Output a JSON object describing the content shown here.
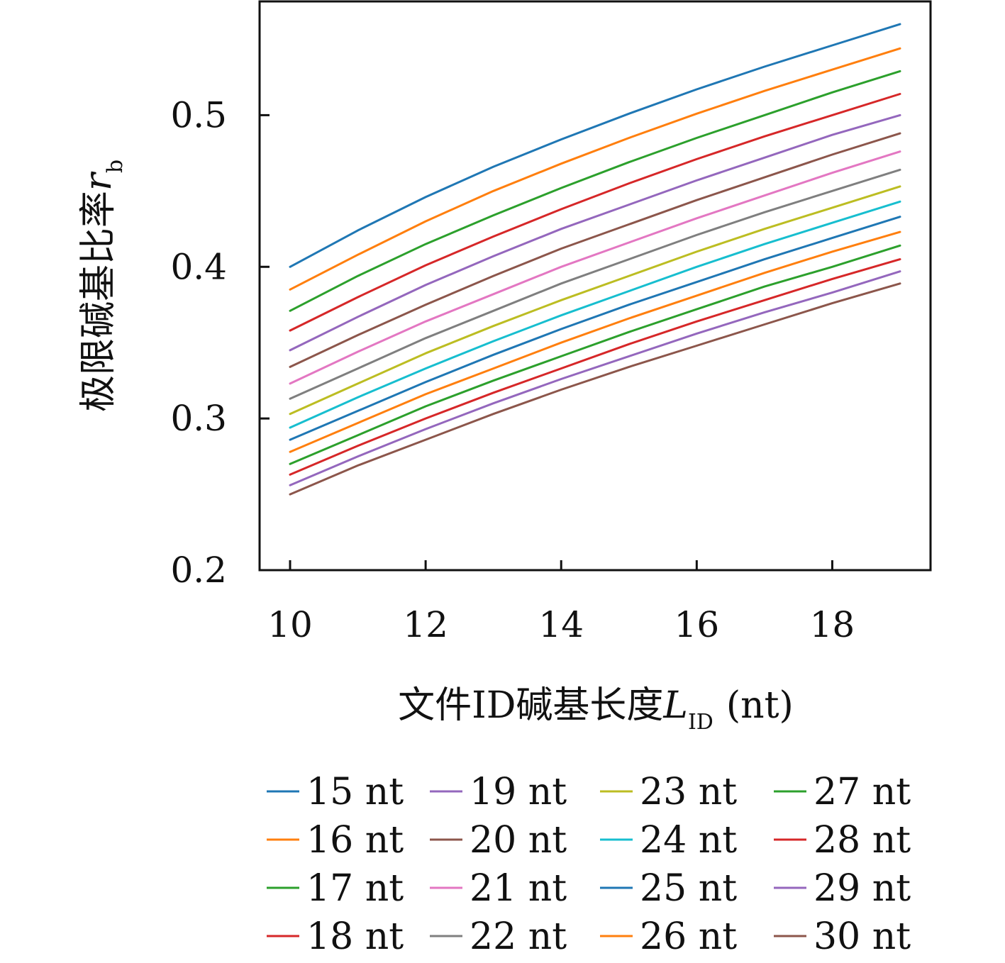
{
  "chart_data": {
    "type": "line",
    "xlabel": {
      "text": "文件ID碱基长度",
      "var": "L",
      "sub": "ID",
      "unit": "(nt)"
    },
    "ylabel": {
      "text": "极限碱基比率",
      "var": "r",
      "sub": "b"
    },
    "xlim": [
      9.55,
      19.45
    ],
    "ylim": [
      0.2,
      0.575
    ],
    "xticks": [
      10,
      12,
      14,
      16,
      18
    ],
    "yticks": [
      0.2,
      0.3,
      0.4,
      0.5
    ],
    "xtick_labels": [
      "10",
      "12",
      "14",
      "16",
      "18"
    ],
    "ytick_labels": [
      "0.2",
      "0.3",
      "0.4",
      "0.5"
    ],
    "grid": false,
    "legend_position": "bottom",
    "x": [
      10,
      11,
      12,
      13,
      14,
      15,
      16,
      17,
      18,
      19
    ],
    "series": [
      {
        "name": "15 nt",
        "color": "#1f77b4",
        "values": [
          0.4,
          0.424,
          0.446,
          0.466,
          0.484,
          0.501,
          0.517,
          0.532,
          0.546,
          0.56
        ]
      },
      {
        "name": "16 nt",
        "color": "#ff7f0e",
        "values": [
          0.385,
          0.408,
          0.43,
          0.45,
          0.468,
          0.485,
          0.501,
          0.516,
          0.53,
          0.544
        ]
      },
      {
        "name": "17 nt",
        "color": "#2ca02c",
        "values": [
          0.371,
          0.394,
          0.415,
          0.434,
          0.452,
          0.469,
          0.485,
          0.5,
          0.515,
          0.529
        ]
      },
      {
        "name": "18 nt",
        "color": "#d62728",
        "values": [
          0.358,
          0.38,
          0.401,
          0.42,
          0.438,
          0.455,
          0.471,
          0.486,
          0.5,
          0.514
        ]
      },
      {
        "name": "19 nt",
        "color": "#9467bd",
        "values": [
          0.345,
          0.367,
          0.388,
          0.407,
          0.425,
          0.441,
          0.457,
          0.472,
          0.487,
          0.5
        ]
      },
      {
        "name": "20 nt",
        "color": "#8c564b",
        "values": [
          0.334,
          0.355,
          0.375,
          0.394,
          0.412,
          0.428,
          0.444,
          0.459,
          0.474,
          0.488
        ]
      },
      {
        "name": "21 nt",
        "color": "#e377c2",
        "values": [
          0.323,
          0.344,
          0.364,
          0.382,
          0.4,
          0.416,
          0.432,
          0.447,
          0.462,
          0.476
        ]
      },
      {
        "name": "22 nt",
        "color": "#7f7f7f",
        "values": [
          0.313,
          0.333,
          0.353,
          0.371,
          0.389,
          0.405,
          0.421,
          0.436,
          0.45,
          0.464
        ]
      },
      {
        "name": "23 nt",
        "color": "#bcbd22",
        "values": [
          0.303,
          0.323,
          0.343,
          0.361,
          0.378,
          0.394,
          0.41,
          0.425,
          0.439,
          0.453
        ]
      },
      {
        "name": "24 nt",
        "color": "#17becf",
        "values": [
          0.294,
          0.314,
          0.333,
          0.351,
          0.368,
          0.384,
          0.4,
          0.415,
          0.429,
          0.443
        ]
      },
      {
        "name": "25 nt",
        "color": "#1f77b4",
        "values": [
          0.286,
          0.305,
          0.324,
          0.342,
          0.359,
          0.375,
          0.39,
          0.405,
          0.419,
          0.433
        ]
      },
      {
        "name": "26 nt",
        "color": "#ff7f0e",
        "values": [
          0.278,
          0.297,
          0.316,
          0.333,
          0.35,
          0.366,
          0.381,
          0.396,
          0.41,
          0.423
        ]
      },
      {
        "name": "27 nt",
        "color": "#2ca02c",
        "values": [
          0.27,
          0.289,
          0.308,
          0.325,
          0.341,
          0.357,
          0.372,
          0.387,
          0.4,
          0.414
        ]
      },
      {
        "name": "28 nt",
        "color": "#d62728",
        "values": [
          0.263,
          0.282,
          0.3,
          0.317,
          0.333,
          0.349,
          0.364,
          0.378,
          0.392,
          0.405
        ]
      },
      {
        "name": "29 nt",
        "color": "#9467bd",
        "values": [
          0.256,
          0.275,
          0.293,
          0.31,
          0.326,
          0.341,
          0.356,
          0.37,
          0.383,
          0.397
        ]
      },
      {
        "name": "30 nt",
        "color": "#8c564b",
        "values": [
          0.25,
          0.269,
          0.286,
          0.303,
          0.319,
          0.334,
          0.348,
          0.362,
          0.376,
          0.389
        ]
      }
    ]
  }
}
